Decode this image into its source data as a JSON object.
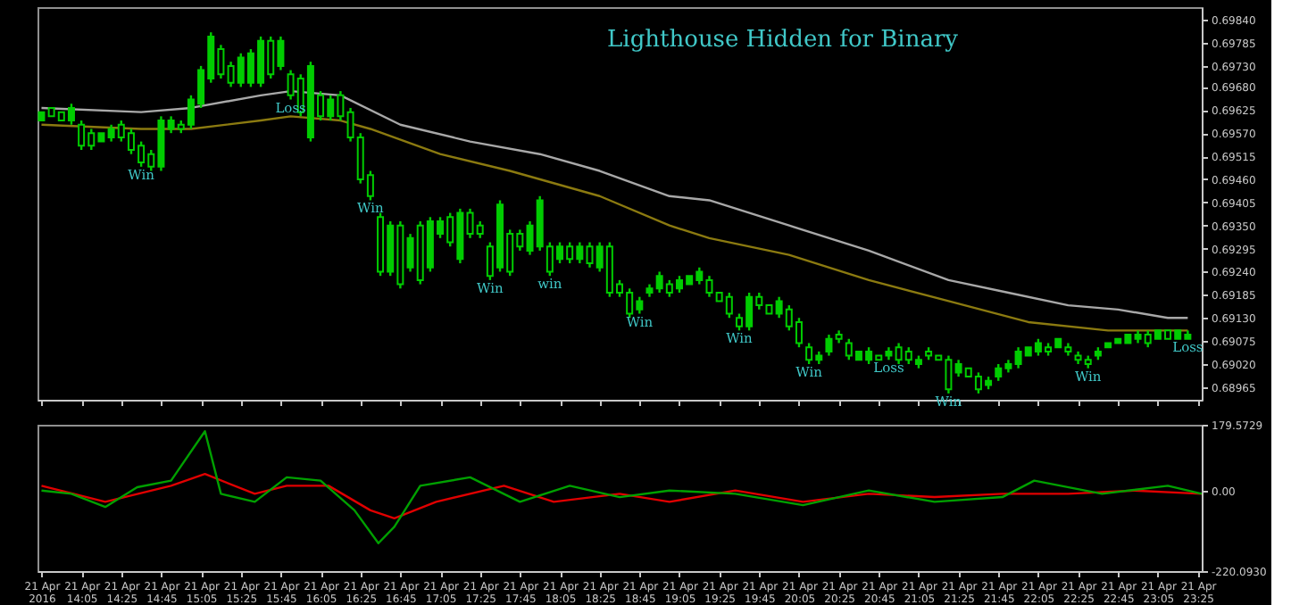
{
  "chart_data": [
    {
      "type": "candlestick",
      "title": "Lighthouse Hidden for Binary",
      "color": "#00cc00",
      "tick_labels": "y",
      "xlim": [
        "2016-04-21T13:43",
        "2016-04-21T23:27"
      ],
      "ylim": [
        0.68935,
        0.6987
      ],
      "yticks": [
        {
          "value": 0.6984,
          "label": "0.69840"
        },
        0.69785,
        {
          "value": 0.6973,
          "label": "0.69730"
        },
        {
          "value": 0.6968,
          "label": "0.69680"
        },
        0.69625,
        {
          "value": 0.6957,
          "label": "0.69570"
        },
        0.69515,
        {
          "value": 0.6946,
          "label": "0.69460"
        },
        0.69405,
        {
          "value": 0.6935,
          "label": "0.69350"
        },
        0.69295,
        {
          "value": 0.6924,
          "label": "0.69240"
        },
        0.69185,
        {
          "value": 0.6913,
          "label": "0.69130"
        },
        0.69075,
        {
          "value": 0.6902,
          "label": "0.69020"
        },
        0.68965
      ],
      "xticks": [
        {
          "value": "2016-04-21T13:45",
          "label": null
        },
        {
          "value": "2016-04-21T14:05",
          "label": null
        },
        {
          "value": "2016-04-21T14:25",
          "label": null
        },
        {
          "value": "2016-04-21T14:45",
          "label": null
        },
        {
          "value": "2016-04-21T15:05",
          "label": null
        },
        {
          "value": "2016-04-21T15:25",
          "label": null
        },
        {
          "value": "2016-04-21T15:45",
          "label": null
        },
        {
          "value": "2016-04-21T16:05",
          "label": null
        },
        {
          "value": "2016-04-21T16:25",
          "label": null
        },
        {
          "value": "2016-04-21T16:45",
          "label": null
        },
        {
          "value": "2016-04-21T17:05",
          "label": null
        },
        {
          "value": "2016-04-21T17:25",
          "label": null
        },
        {
          "value": "2016-04-21T17:45",
          "label": null
        },
        {
          "value": "2016-04-21T18:05",
          "label": null
        },
        {
          "value": "2016-04-21T18:25",
          "label": null
        },
        {
          "value": "2016-04-21T18:45",
          "label": null
        },
        {
          "value": "2016-04-21T19:05",
          "label": null
        },
        {
          "value": "2016-04-21T19:25",
          "label": null
        },
        {
          "value": "2016-04-21T19:45",
          "label": null
        },
        {
          "value": "2016-04-21T20:05",
          "label": null
        },
        {
          "value": "2016-04-21T20:25",
          "label": null
        },
        {
          "value": "2016-04-21T20:45",
          "label": null
        },
        {
          "value": "2016-04-21T21:05",
          "label": null
        },
        {
          "value": "2016-04-21T21:25",
          "label": null
        },
        {
          "value": "2016-04-21T21:45",
          "label": null
        },
        {
          "value": "2016-04-21T22:05",
          "label": null
        },
        {
          "value": "2016-04-21T22:25",
          "label": null
        },
        {
          "value": "2016-04-21T22:45",
          "label": null
        },
        {
          "value": "2016-04-21T23:05",
          "label": null
        },
        {
          "value": "2016-04-21T23:25",
          "label": null
        }
      ],
      "x": [
        "2016-04-21T13:45",
        "2016-04-21T13:50",
        "2016-04-21T13:55",
        "2016-04-21T14:00",
        "2016-04-21T14:05",
        "2016-04-21T14:10",
        "2016-04-21T14:15",
        "2016-04-21T14:20",
        "2016-04-21T14:25",
        "2016-04-21T14:30",
        "2016-04-21T14:35",
        "2016-04-21T14:40",
        "2016-04-21T14:45",
        "2016-04-21T14:50",
        "2016-04-21T14:55",
        "2016-04-21T15:00",
        "2016-04-21T15:05",
        "2016-04-21T15:10",
        "2016-04-21T15:15",
        "2016-04-21T15:20",
        "2016-04-21T15:25",
        "2016-04-21T15:30",
        "2016-04-21T15:35",
        "2016-04-21T15:40",
        "2016-04-21T15:45",
        "2016-04-21T15:50",
        "2016-04-21T15:55",
        "2016-04-21T16:00",
        "2016-04-21T16:05",
        "2016-04-21T16:10",
        "2016-04-21T16:15",
        "2016-04-21T16:20",
        "2016-04-21T16:25",
        "2016-04-21T16:30",
        "2016-04-21T16:35",
        "2016-04-21T16:40",
        "2016-04-21T16:45",
        "2016-04-21T16:50",
        "2016-04-21T16:55",
        "2016-04-21T17:00",
        "2016-04-21T17:05",
        "2016-04-21T17:10",
        "2016-04-21T17:15",
        "2016-04-21T17:20",
        "2016-04-21T17:25",
        "2016-04-21T17:30",
        "2016-04-21T17:35",
        "2016-04-21T17:40",
        "2016-04-21T17:45",
        "2016-04-21T17:50",
        "2016-04-21T17:55",
        "2016-04-21T18:00",
        "2016-04-21T18:05",
        "2016-04-21T18:10",
        "2016-04-21T18:15",
        "2016-04-21T18:20",
        "2016-04-21T18:25",
        "2016-04-21T18:30",
        "2016-04-21T18:35",
        "2016-04-21T18:40",
        "2016-04-21T18:45",
        "2016-04-21T18:50",
        "2016-04-21T18:55",
        "2016-04-21T19:00",
        "2016-04-21T19:05",
        "2016-04-21T19:10",
        "2016-04-21T19:15",
        "2016-04-21T19:20",
        "2016-04-21T19:25",
        "2016-04-21T19:30",
        "2016-04-21T19:35",
        "2016-04-21T19:40",
        "2016-04-21T19:45",
        "2016-04-21T19:50",
        "2016-04-21T19:55",
        "2016-04-21T20:00",
        "2016-04-21T20:05",
        "2016-04-21T20:10",
        "2016-04-21T20:15",
        "2016-04-21T20:20",
        "2016-04-21T20:25",
        "2016-04-21T20:30",
        "2016-04-21T20:35",
        "2016-04-21T20:40",
        "2016-04-21T20:45",
        "2016-04-21T20:50",
        "2016-04-21T20:55",
        "2016-04-21T21:00",
        "2016-04-21T21:05",
        "2016-04-21T21:10",
        "2016-04-21T21:15",
        "2016-04-21T21:20",
        "2016-04-21T21:25",
        "2016-04-21T21:30",
        "2016-04-21T21:35",
        "2016-04-21T21:40",
        "2016-04-21T21:45",
        "2016-04-21T21:50",
        "2016-04-21T21:55",
        "2016-04-21T22:00",
        "2016-04-21T22:05",
        "2016-04-21T22:10",
        "2016-04-21T22:15",
        "2016-04-21T22:20",
        "2016-04-21T22:25",
        "2016-04-21T22:30",
        "2016-04-21T22:35",
        "2016-04-21T22:40",
        "2016-04-21T22:45",
        "2016-04-21T22:50",
        "2016-04-21T22:55",
        "2016-04-21T23:00",
        "2016-04-21T23:05",
        "2016-04-21T23:10",
        "2016-04-21T23:15",
        "2016-04-21T23:20"
      ],
      "ohlc": [
        [
          0.696,
          0.6962,
          0.696,
          0.6962
        ],
        [
          0.6963,
          0.6963,
          0.6961,
          0.6961
        ],
        [
          0.6962,
          0.6962,
          0.696,
          0.696
        ],
        [
          0.696,
          0.6964,
          0.6959,
          0.6963
        ],
        [
          0.6959,
          0.696,
          0.6953,
          0.6954
        ],
        [
          0.6957,
          0.6958,
          0.6953,
          0.6954
        ],
        [
          0.6955,
          0.6957,
          0.6955,
          0.6957
        ],
        [
          0.6956,
          0.6959,
          0.6955,
          0.6958
        ],
        [
          0.6959,
          0.696,
          0.6955,
          0.6956
        ],
        [
          0.6957,
          0.6958,
          0.6952,
          0.6953
        ],
        [
          0.6954,
          0.6955,
          0.6949,
          0.695
        ],
        [
          0.6952,
          0.6953,
          0.6948,
          0.6949
        ],
        [
          0.6949,
          0.6961,
          0.6948,
          0.696
        ],
        [
          0.6958,
          0.6961,
          0.6957,
          0.696
        ],
        [
          0.6959,
          0.696,
          0.6957,
          0.6958
        ],
        [
          0.6959,
          0.6966,
          0.6958,
          0.6965
        ],
        [
          0.6964,
          0.6973,
          0.6963,
          0.6972
        ],
        [
          0.697,
          0.6981,
          0.6969,
          0.698
        ],
        [
          0.6977,
          0.6978,
          0.697,
          0.6971
        ],
        [
          0.6973,
          0.6974,
          0.6968,
          0.6969
        ],
        [
          0.6969,
          0.6976,
          0.6968,
          0.6975
        ],
        [
          0.6969,
          0.6977,
          0.6968,
          0.6976
        ],
        [
          0.6969,
          0.698,
          0.6968,
          0.6979
        ],
        [
          0.6979,
          0.698,
          0.697,
          0.6971
        ],
        [
          0.6973,
          0.698,
          0.6972,
          0.6979
        ],
        [
          0.6971,
          0.6972,
          0.6965,
          0.6966
        ],
        [
          0.697,
          0.6971,
          0.6961,
          0.6962
        ],
        [
          0.6956,
          0.6974,
          0.6955,
          0.6973
        ],
        [
          0.6966,
          0.6967,
          0.696,
          0.6961
        ],
        [
          0.6961,
          0.6966,
          0.696,
          0.6965
        ],
        [
          0.6966,
          0.6967,
          0.696,
          0.6961
        ],
        [
          0.6962,
          0.6963,
          0.6955,
          0.6956
        ],
        [
          0.6956,
          0.6957,
          0.6945,
          0.6946
        ],
        [
          0.6947,
          0.6948,
          0.6941,
          0.6942
        ],
        [
          0.6937,
          0.6938,
          0.6923,
          0.6924
        ],
        [
          0.6924,
          0.6936,
          0.6923,
          0.6935
        ],
        [
          0.6935,
          0.6936,
          0.692,
          0.6921
        ],
        [
          0.6925,
          0.6933,
          0.6924,
          0.6932
        ],
        [
          0.6935,
          0.6936,
          0.6921,
          0.6922
        ],
        [
          0.6925,
          0.6937,
          0.6924,
          0.6936
        ],
        [
          0.6933,
          0.6937,
          0.6932,
          0.6936
        ],
        [
          0.6937,
          0.6938,
          0.693,
          0.6931
        ],
        [
          0.6927,
          0.6939,
          0.6926,
          0.6938
        ],
        [
          0.6938,
          0.6939,
          0.6932,
          0.6933
        ],
        [
          0.6935,
          0.6936,
          0.6932,
          0.6933
        ],
        [
          0.693,
          0.6931,
          0.6922,
          0.6923
        ],
        [
          0.6925,
          0.6941,
          0.6924,
          0.694
        ],
        [
          0.6933,
          0.6934,
          0.6923,
          0.6924
        ],
        [
          0.6933,
          0.6934,
          0.6929,
          0.693
        ],
        [
          0.6929,
          0.6936,
          0.6928,
          0.6935
        ],
        [
          0.693,
          0.6942,
          0.6929,
          0.6941
        ],
        [
          0.693,
          0.6931,
          0.6923,
          0.6924
        ],
        [
          0.6927,
          0.6931,
          0.6926,
          0.693
        ],
        [
          0.693,
          0.6931,
          0.6926,
          0.6927
        ],
        [
          0.6927,
          0.6931,
          0.6926,
          0.693
        ],
        [
          0.693,
          0.6931,
          0.6925,
          0.6926
        ],
        [
          0.6925,
          0.6931,
          0.6924,
          0.693
        ],
        [
          0.693,
          0.6931,
          0.6918,
          0.6919
        ],
        [
          0.6921,
          0.6922,
          0.6918,
          0.6919
        ],
        [
          0.6919,
          0.692,
          0.6913,
          0.6914
        ],
        [
          0.6915,
          0.6918,
          0.6914,
          0.6917
        ],
        [
          0.6919,
          0.6921,
          0.6918,
          0.692
        ],
        [
          0.692,
          0.6924,
          0.6919,
          0.6923
        ],
        [
          0.6921,
          0.6922,
          0.6918,
          0.6919
        ],
        [
          0.692,
          0.6923,
          0.6919,
          0.6922
        ],
        [
          0.6921,
          0.6923,
          0.6921,
          0.6923
        ],
        [
          0.6922,
          0.6925,
          0.6921,
          0.6924
        ],
        [
          0.6922,
          0.6923,
          0.6918,
          0.6919
        ],
        [
          0.6919,
          0.6919,
          0.6917,
          0.6917
        ],
        [
          0.6918,
          0.6919,
          0.6913,
          0.6914
        ],
        [
          0.6913,
          0.6914,
          0.691,
          0.6911
        ],
        [
          0.6911,
          0.6919,
          0.691,
          0.6918
        ],
        [
          0.6918,
          0.6919,
          0.6915,
          0.6916
        ],
        [
          0.6916,
          0.6916,
          0.6914,
          0.6914
        ],
        [
          0.6914,
          0.6918,
          0.6913,
          0.6917
        ],
        [
          0.6915,
          0.6916,
          0.691,
          0.6911
        ],
        [
          0.6912,
          0.6913,
          0.6906,
          0.6907
        ],
        [
          0.6906,
          0.6907,
          0.6902,
          0.6903
        ],
        [
          0.6903,
          0.6905,
          0.6902,
          0.6904
        ],
        [
          0.6905,
          0.6909,
          0.6904,
          0.6908
        ],
        [
          0.6909,
          0.691,
          0.6907,
          0.6908
        ],
        [
          0.6907,
          0.6908,
          0.6903,
          0.6904
        ],
        [
          0.6903,
          0.6905,
          0.6903,
          0.6905
        ],
        [
          0.6903,
          0.6906,
          0.6902,
          0.6905
        ],
        [
          0.6904,
          0.6904,
          0.6903,
          0.6903
        ],
        [
          0.6904,
          0.6906,
          0.6903,
          0.6905
        ],
        [
          0.6906,
          0.6907,
          0.6902,
          0.6903
        ],
        [
          0.6905,
          0.6906,
          0.6902,
          0.6903
        ],
        [
          0.6902,
          0.6904,
          0.6901,
          0.6903
        ],
        [
          0.6905,
          0.6906,
          0.6903,
          0.6904
        ],
        [
          0.6904,
          0.6904,
          0.6903,
          0.6903
        ],
        [
          0.6903,
          0.6904,
          0.6895,
          0.6896
        ],
        [
          0.69,
          0.6903,
          0.6899,
          0.6902
        ],
        [
          0.6901,
          0.6901,
          0.6899,
          0.6899
        ],
        [
          0.6899,
          0.69,
          0.6895,
          0.6896
        ],
        [
          0.6897,
          0.6899,
          0.6896,
          0.6898
        ],
        [
          0.6899,
          0.6902,
          0.6898,
          0.6901
        ],
        [
          0.6901,
          0.6903,
          0.69,
          0.6902
        ],
        [
          0.6902,
          0.6906,
          0.6901,
          0.6905
        ],
        [
          0.6904,
          0.6906,
          0.6904,
          0.6906
        ],
        [
          0.6905,
          0.6908,
          0.6904,
          0.6907
        ],
        [
          0.6906,
          0.6907,
          0.6904,
          0.6905
        ],
        [
          0.6906,
          0.6908,
          0.6906,
          0.6908
        ],
        [
          0.6906,
          0.6907,
          0.6904,
          0.6905
        ],
        [
          0.6904,
          0.6905,
          0.6902,
          0.6903
        ],
        [
          0.6903,
          0.6904,
          0.6901,
          0.6902
        ],
        [
          0.6904,
          0.6906,
          0.6903,
          0.6905
        ],
        [
          0.6906,
          0.6907,
          0.6906,
          0.6907
        ],
        [
          0.6907,
          0.6908,
          0.6907,
          0.6908
        ],
        [
          0.6907,
          0.6909,
          0.6907,
          0.6909
        ],
        [
          0.6908,
          0.691,
          0.6907,
          0.6909
        ],
        [
          0.6909,
          0.691,
          0.6906,
          0.6907
        ],
        [
          0.6908,
          0.691,
          0.6908,
          0.691
        ],
        [
          0.691,
          0.691,
          0.6908,
          0.6908
        ],
        [
          0.6908,
          0.691,
          0.6908,
          0.691
        ],
        [
          0.6908,
          0.691,
          0.6908,
          0.6909
        ]
      ],
      "series": [
        {
          "type": "line",
          "color": "#a8a8a8",
          "x": [
            "2016-04-21T13:45",
            "2016-04-21T14:35",
            "2016-04-21T15:00",
            "2016-04-21T15:35",
            "2016-04-21T15:50",
            "2016-04-21T16:15",
            "2016-04-21T16:45",
            "2016-04-21T17:20",
            "2016-04-21T17:55",
            "2016-04-21T18:25",
            "2016-04-21T19:00",
            "2016-04-21T19:20",
            "2016-04-21T20:00",
            "2016-04-21T20:40",
            "2016-04-21T21:20",
            "2016-04-21T21:50",
            "2016-04-21T22:20",
            "2016-04-21T22:45",
            "2016-04-21T23:10",
            "2016-04-21T23:20"
          ],
          "values": [
            0.6963,
            0.6962,
            0.6963,
            0.6966,
            0.6967,
            0.6966,
            0.6959,
            0.6955,
            0.6952,
            0.6948,
            0.6942,
            0.6941,
            0.6935,
            0.6929,
            0.6922,
            0.6919,
            0.6916,
            0.6915,
            0.6913,
            0.6913
          ]
        },
        {
          "type": "line",
          "color": "#8b7a10",
          "x": [
            "2016-04-21T13:45",
            "2016-04-21T14:35",
            "2016-04-21T15:00",
            "2016-04-21T15:35",
            "2016-04-21T15:50",
            "2016-04-21T16:15",
            "2016-04-21T16:30",
            "2016-04-21T17:05",
            "2016-04-21T17:40",
            "2016-04-21T18:25",
            "2016-04-21T19:00",
            "2016-04-21T19:20",
            "2016-04-21T20:00",
            "2016-04-21T20:40",
            "2016-04-21T21:20",
            "2016-04-21T22:00",
            "2016-04-21T22:40",
            "2016-04-21T23:20"
          ],
          "values": [
            0.6959,
            0.6958,
            0.6958,
            0.696,
            0.6961,
            0.696,
            0.6958,
            0.6952,
            0.6948,
            0.6942,
            0.6935,
            0.6932,
            0.6928,
            0.6922,
            0.6917,
            0.6912,
            0.691,
            0.691
          ]
        }
      ],
      "annotations": [
        {
          "text": "Win",
          "x": "2016-04-21T14:35",
          "y": 0.6949
        },
        {
          "text": "Loss",
          "x": "2016-04-21T15:50",
          "y": 0.6965
        },
        {
          "text": "Win",
          "x": "2016-04-21T16:30",
          "y": 0.6941
        },
        {
          "text": "Win",
          "x": "2016-04-21T17:30",
          "y": 0.6922
        },
        {
          "text": "win",
          "x": "2016-04-21T18:00",
          "y": 0.6923
        },
        {
          "text": "Win",
          "x": "2016-04-21T18:45",
          "y": 0.6914
        },
        {
          "text": "Win",
          "x": "2016-04-21T19:35",
          "y": 0.691
        },
        {
          "text": "Win",
          "x": "2016-04-21T20:10",
          "y": 0.6902
        },
        {
          "text": "Loss",
          "x": "2016-04-21T20:50",
          "y": 0.6903
        },
        {
          "text": "Win",
          "x": "2016-04-21T21:20",
          "y": 0.6895
        },
        {
          "text": "Win",
          "x": "2016-04-21T22:30",
          "y": 0.6901
        },
        {
          "text": "Loss",
          "x": "2016-04-21T23:20",
          "y": 0.6908
        }
      ]
    },
    {
      "type": "line",
      "xlim": [
        "2016-04-21T13:43",
        "2016-04-21T23:27"
      ],
      "ylim": [
        -220.093,
        179.5729
      ],
      "yticks": [
        {
          "value": 179.5729,
          "label": "179.5729"
        },
        {
          "value": 0,
          "label": "0.00"
        },
        {
          "value": -220.093,
          "label": "-220.0930"
        }
      ],
      "xticks": [
        {
          "value": "2016-04-21T13:45",
          "label": "21 Apr 2016"
        },
        {
          "value": "2016-04-21T14:05",
          "label": "21 Apr 14:05"
        },
        {
          "value": "2016-04-21T14:25",
          "label": "21 Apr 14:25"
        },
        {
          "value": "2016-04-21T14:45",
          "label": "21 Apr 14:45"
        },
        {
          "value": "2016-04-21T15:05",
          "label": "21 Apr 15:05"
        },
        {
          "value": "2016-04-21T15:25",
          "label": "21 Apr 15:25"
        },
        {
          "value": "2016-04-21T15:45",
          "label": "21 Apr 15:45"
        },
        {
          "value": "2016-04-21T16:05",
          "label": "21 Apr 16:05"
        },
        {
          "value": "2016-04-21T16:25",
          "label": "21 Apr 16:25"
        },
        {
          "value": "2016-04-21T16:45",
          "label": "21 Apr 16:45"
        },
        {
          "value": "2016-04-21T17:05",
          "label": "21 Apr 17:05"
        },
        {
          "value": "2016-04-21T17:25",
          "label": "21 Apr 17:25"
        },
        {
          "value": "2016-04-21T17:45",
          "label": "21 Apr 17:45"
        },
        {
          "value": "2016-04-21T18:05",
          "label": "21 Apr 18:05"
        },
        {
          "value": "2016-04-21T18:25",
          "label": "21 Apr 18:25"
        },
        {
          "value": "2016-04-21T18:45",
          "label": "21 Apr 18:45"
        },
        {
          "value": "2016-04-21T19:05",
          "label": "21 Apr 19:05"
        },
        {
          "value": "2016-04-21T19:25",
          "label": "21 Apr 19:25"
        },
        {
          "value": "2016-04-21T19:45",
          "label": "21 Apr 19:45"
        },
        {
          "value": "2016-04-21T20:05",
          "label": "21 Apr 20:05"
        },
        {
          "value": "2016-04-21T20:25",
          "label": "21 Apr 20:25"
        },
        {
          "value": "2016-04-21T20:45",
          "label": "21 Apr 20:45"
        },
        {
          "value": "2016-04-21T21:05",
          "label": "21 Apr 21:05"
        },
        {
          "value": "2016-04-21T21:25",
          "label": "21 Apr 21:25"
        },
        {
          "value": "2016-04-21T21:45",
          "label": "21 Apr 21:45"
        },
        {
          "value": "2016-04-21T22:05",
          "label": "21 Apr 22:05"
        },
        {
          "value": "2016-04-21T22:25",
          "label": "21 Apr 22:25"
        },
        {
          "value": "2016-04-21T22:45",
          "label": "21 Apr 22:45"
        },
        {
          "value": "2016-04-21T23:05",
          "label": "21 Apr 23:05"
        },
        {
          "value": "2016-04-21T23:25",
          "label": "21 Apr 23:25"
        }
      ],
      "series": [
        {
          "color": "#e00000",
          "x": [
            "2016-04-21T13:45",
            "2016-04-21T14:17",
            "2016-04-21T14:50",
            "2016-04-21T15:07",
            "2016-04-21T15:32",
            "2016-04-21T15:48",
            "2016-04-21T16:09",
            "2016-04-21T16:30",
            "2016-04-21T16:42",
            "2016-04-21T17:03",
            "2016-04-21T17:37",
            "2016-04-21T18:02",
            "2016-04-21T18:35",
            "2016-04-21T19:00",
            "2016-04-21T19:33",
            "2016-04-21T20:07",
            "2016-04-21T20:40",
            "2016-04-21T21:13",
            "2016-04-21T21:47",
            "2016-04-21T22:20",
            "2016-04-21T22:53",
            "2016-04-21T23:27"
          ],
          "values": [
            13,
            -31,
            13,
            45,
            -9,
            13,
            13,
            -54,
            -76,
            -31,
            13,
            -31,
            -9,
            -31,
            0,
            -31,
            -9,
            -18,
            -9,
            -9,
            0,
            -9
          ]
        },
        {
          "color": "#00a000",
          "x": [
            "2016-04-21T13:45",
            "2016-04-21T14:00",
            "2016-04-21T14:17",
            "2016-04-21T14:33",
            "2016-04-21T14:50",
            "2016-04-21T15:07",
            "2016-04-21T15:15",
            "2016-04-21T15:32",
            "2016-04-21T15:48",
            "2016-04-21T16:05",
            "2016-04-21T16:22",
            "2016-04-21T16:34",
            "2016-04-21T16:42",
            "2016-04-21T16:55",
            "2016-04-21T17:20",
            "2016-04-21T17:45",
            "2016-04-21T18:10",
            "2016-04-21T18:35",
            "2016-04-21T19:00",
            "2016-04-21T19:33",
            "2016-04-21T20:07",
            "2016-04-21T20:40",
            "2016-04-21T21:13",
            "2016-04-21T21:47",
            "2016-04-21T22:03",
            "2016-04-21T22:37",
            "2016-04-21T23:10",
            "2016-04-21T23:27"
          ],
          "values": [
            0,
            -9,
            -45,
            9,
            27,
            162,
            -9,
            -31,
            36,
            27,
            -54,
            -144,
            -99,
            13,
            36,
            -31,
            13,
            -18,
            0,
            -9,
            -40,
            0,
            -31,
            -18,
            27,
            -9,
            13,
            -9
          ]
        }
      ]
    }
  ]
}
